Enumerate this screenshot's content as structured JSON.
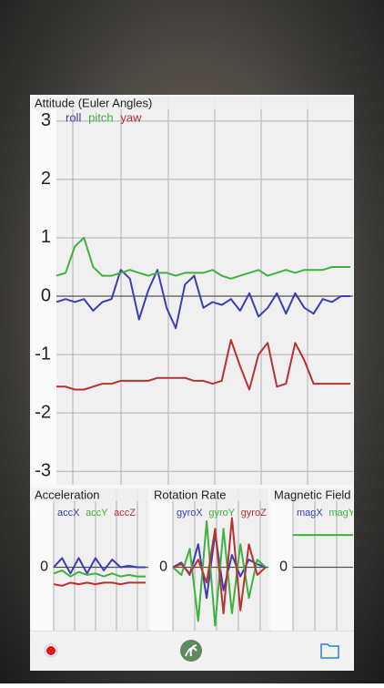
{
  "chart_data": [
    {
      "type": "line",
      "title": "Attitude (Euler Angles)",
      "ylim": [
        -3.2,
        3.2
      ],
      "yticks": [
        -3,
        -2,
        -1,
        0,
        1,
        2,
        3
      ],
      "grid": true,
      "series": [
        {
          "name": "roll",
          "color": "#3a3fb5",
          "values": [
            -0.1,
            -0.05,
            -0.1,
            -0.05,
            -0.25,
            -0.1,
            -0.05,
            0.45,
            0.3,
            -0.4,
            0.1,
            0.45,
            -0.2,
            -0.55,
            0.2,
            0.35,
            -0.2,
            -0.1,
            -0.15,
            -0.05,
            -0.25,
            0.05,
            -0.35,
            -0.2,
            0.05,
            -0.3,
            0.05,
            -0.2,
            -0.3,
            -0.05,
            -0.1,
            0,
            0
          ]
        },
        {
          "name": "pitch",
          "color": "#3db33d",
          "values": [
            0.35,
            0.4,
            0.85,
            1.0,
            0.5,
            0.35,
            0.35,
            0.4,
            0.45,
            0.4,
            0.35,
            0.4,
            0.4,
            0.35,
            0.4,
            0.4,
            0.4,
            0.45,
            0.35,
            0.3,
            0.35,
            0.4,
            0.45,
            0.35,
            0.4,
            0.45,
            0.4,
            0.45,
            0.45,
            0.45,
            0.5,
            0.5,
            0.5
          ]
        },
        {
          "name": "yaw",
          "color": "#b83232",
          "values": [
            -1.55,
            -1.55,
            -1.6,
            -1.6,
            -1.55,
            -1.5,
            -1.5,
            -1.45,
            -1.45,
            -1.45,
            -1.45,
            -1.4,
            -1.4,
            -1.4,
            -1.4,
            -1.45,
            -1.45,
            -1.5,
            -1.45,
            -0.75,
            -1.2,
            -1.6,
            -1.0,
            -0.8,
            -1.55,
            -1.5,
            -0.8,
            -1.1,
            -1.5,
            -1.5,
            -1.5,
            -1.5,
            -1.5
          ]
        }
      ]
    },
    {
      "type": "line",
      "title": "Acceleration",
      "ylim": [
        -2,
        2
      ],
      "yticks": [
        0
      ],
      "grid": true,
      "series": [
        {
          "name": "accX",
          "color": "#3a3fb5",
          "values": [
            0,
            0.3,
            -0.2,
            0.3,
            -0.2,
            0.3,
            -0.1,
            0.25,
            0,
            0.05,
            0,
            0
          ]
        },
        {
          "name": "accY",
          "color": "#3db33d",
          "values": [
            -0.2,
            -0.1,
            -0.3,
            -0.15,
            -0.25,
            -0.2,
            -0.3,
            -0.2,
            -0.3,
            -0.25,
            -0.3,
            -0.3
          ]
        },
        {
          "name": "accZ",
          "color": "#b83232",
          "values": [
            -0.55,
            -0.6,
            -0.5,
            -0.55,
            -0.5,
            -0.55,
            -0.5,
            -0.5,
            -0.55,
            -0.5,
            -0.5,
            -0.5
          ]
        }
      ]
    },
    {
      "type": "line",
      "title": "Rotation Rate",
      "ylim": [
        -4,
        4
      ],
      "yticks": [
        0
      ],
      "grid": true,
      "series": [
        {
          "name": "gyroX",
          "color": "#3a3fb5",
          "values": [
            0,
            0.3,
            -0.5,
            1.5,
            -2.0,
            2.2,
            -1.5,
            0.8,
            -0.6,
            0.5,
            0.2,
            0
          ]
        },
        {
          "name": "gyroY",
          "color": "#3db33d",
          "values": [
            0,
            -0.5,
            1.2,
            -3.5,
            3.0,
            -3.8,
            2.5,
            -3.0,
            1.5,
            -2.0,
            0.5,
            0
          ]
        },
        {
          "name": "gyroZ",
          "color": "#b83232",
          "values": [
            0,
            0.2,
            -0.4,
            0.5,
            -1.0,
            2.5,
            -3.0,
            3.2,
            -2.8,
            1.5,
            -0.5,
            0
          ]
        }
      ]
    },
    {
      "type": "line",
      "title": "Magnetic Field",
      "ylim": [
        -2,
        2
      ],
      "yticks": [
        0
      ],
      "grid": true,
      "series": [
        {
          "name": "magX",
          "color": "#3a3fb5",
          "values": [
            null,
            null,
            null,
            null,
            null,
            null,
            null,
            null
          ]
        },
        {
          "name": "magY",
          "color": "#3db33d",
          "values": [
            1.05,
            1.05,
            1.05,
            1.05,
            1.05,
            1.05,
            1.05,
            1.05
          ]
        }
      ]
    }
  ]
}
